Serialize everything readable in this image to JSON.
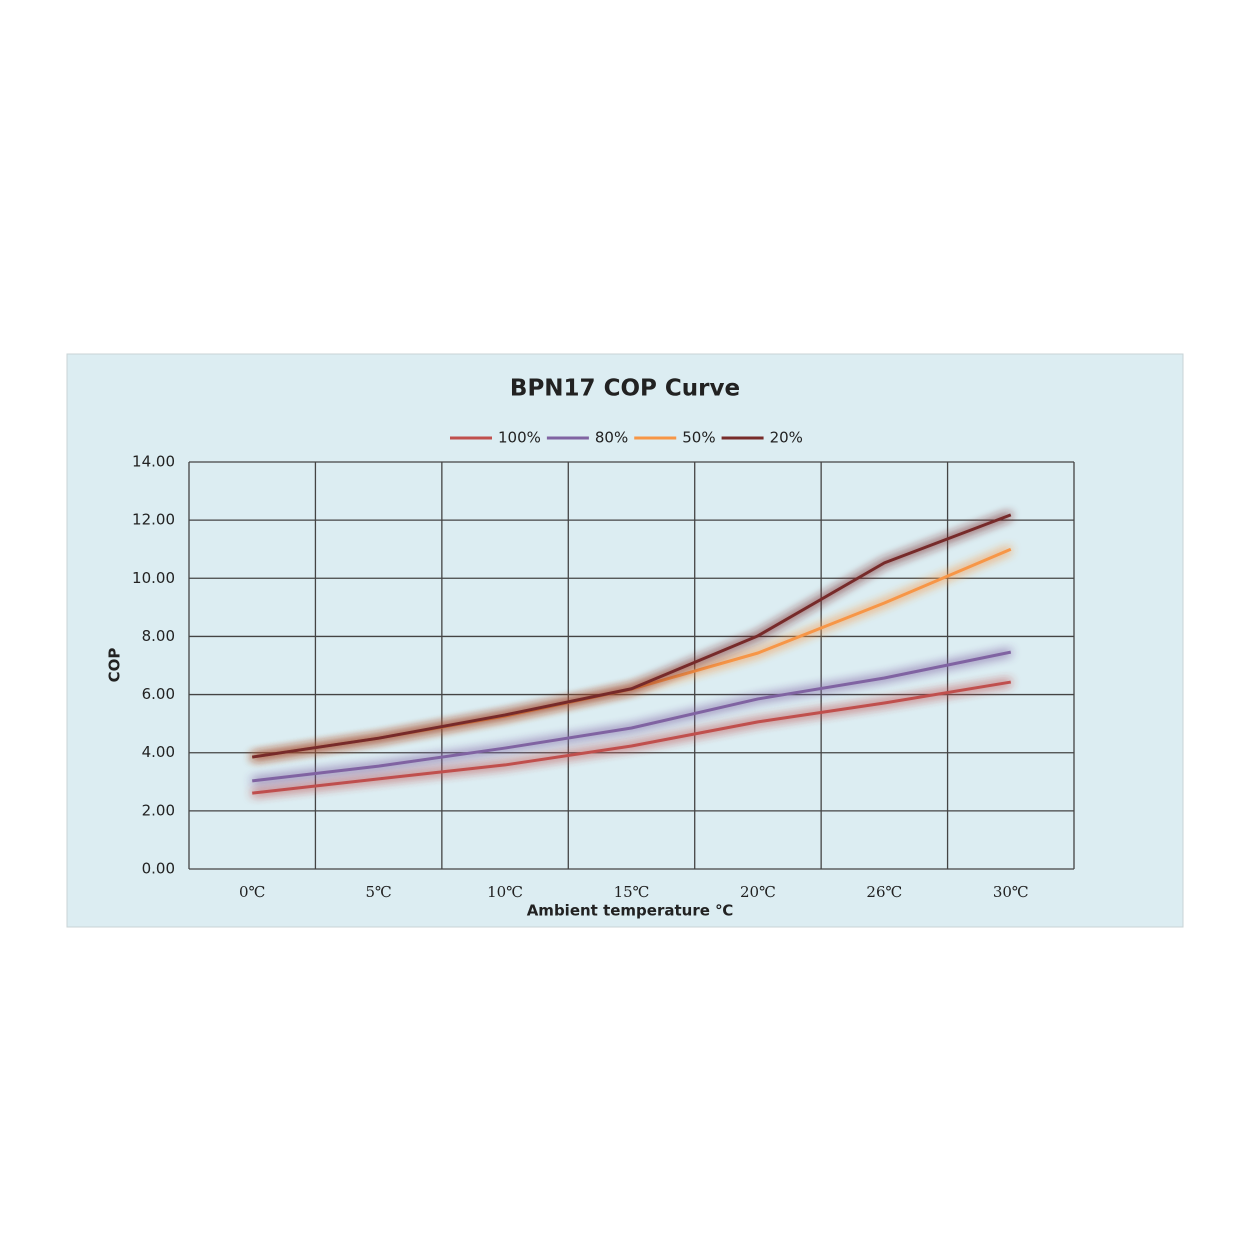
{
  "chart_data": {
    "type": "line",
    "title": "BPN17 COP Curve",
    "x_label": "Ambient temperature ℃",
    "y_label": "COP",
    "categories": [
      "0℃",
      "5℃",
      "10℃",
      "15℃",
      "20℃",
      "26℃",
      "30℃"
    ],
    "series": [
      {
        "name": "100%",
        "color": "#c0504d",
        "values": [
          2.61,
          3.1,
          3.58,
          4.23,
          5.06,
          5.71,
          6.43
        ]
      },
      {
        "name": "80%",
        "color": "#8064a2",
        "values": [
          3.03,
          3.54,
          4.16,
          4.85,
          5.85,
          6.57,
          7.46
        ]
      },
      {
        "name": "50%",
        "color": "#f79646",
        "values": [
          3.85,
          4.5,
          5.26,
          6.19,
          7.43,
          9.15,
          11.0
        ]
      },
      {
        "name": "20%",
        "color": "#772c2a",
        "values": [
          3.85,
          4.5,
          5.3,
          6.2,
          8.02,
          10.53,
          12.18
        ]
      }
    ],
    "ylim": [
      0,
      14
    ],
    "yticks": [
      {
        "value": 0,
        "label": "0.00"
      },
      {
        "value": 2,
        "label": "2.00"
      },
      {
        "value": 4,
        "label": "4.00"
      },
      {
        "value": 6,
        "label": "6.00"
      },
      {
        "value": 8,
        "label": "8.00"
      },
      {
        "value": 10,
        "label": "10.00"
      },
      {
        "value": 12,
        "label": "12.00"
      },
      {
        "value": 14,
        "label": "14.00"
      }
    ],
    "grid": true,
    "legend": "top"
  }
}
